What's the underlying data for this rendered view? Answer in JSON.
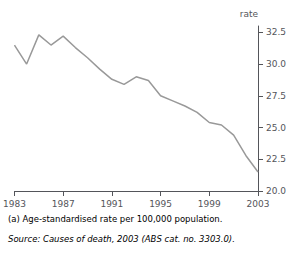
{
  "chart_data": {
    "type": "line",
    "x": [
      1983,
      1984,
      1985,
      1986,
      1987,
      1988,
      1989,
      1990,
      1991,
      1992,
      1993,
      1994,
      1995,
      1996,
      1997,
      1998,
      1999,
      2000,
      2001,
      2002,
      2003
    ],
    "values": [
      31.5,
      30.0,
      32.3,
      31.5,
      32.2,
      31.3,
      30.5,
      29.6,
      28.8,
      28.4,
      29.0,
      28.7,
      27.5,
      27.1,
      26.7,
      26.2,
      25.4,
      25.2,
      24.4,
      22.8,
      21.5
    ],
    "color": "#999999",
    "xlim": [
      1983,
      2003
    ],
    "xticks": [
      1983,
      1987,
      1991,
      1995,
      1999,
      2003
    ],
    "ylim": [
      20.0,
      33.0
    ],
    "yticks": [
      {
        "value": 20.0,
        "label": "20.0"
      },
      22.5,
      {
        "value": 25.0,
        "label": "25.0"
      },
      27.5,
      {
        "value": 30.0,
        "label": "30.0"
      },
      32.5
    ],
    "ylabel": "rate",
    "grid": false,
    "annotations": [
      "(a) Age-standardised rate per 100,000 population.",
      "Source: Causes of death, 2003 (ABS cat. no. 3303.0)."
    ]
  }
}
